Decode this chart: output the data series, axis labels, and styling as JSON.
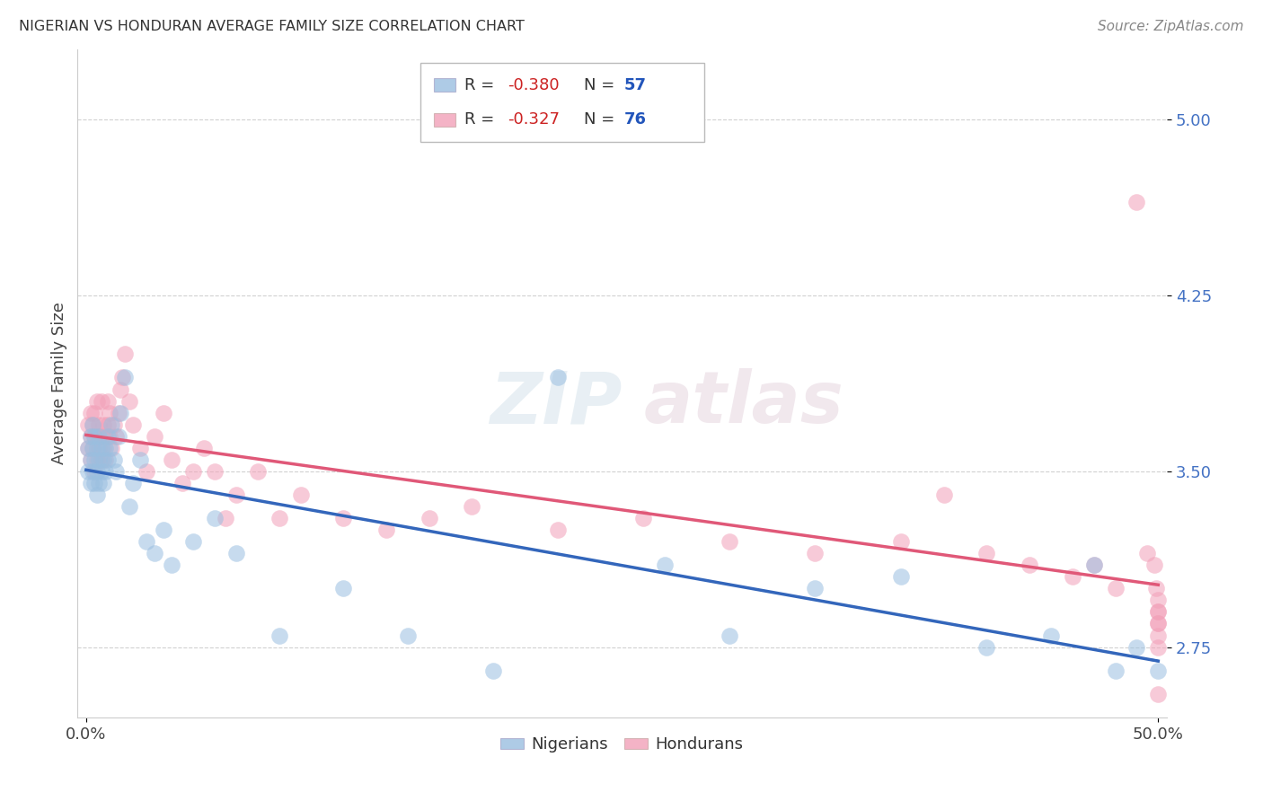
{
  "title": "NIGERIAN VS HONDURAN AVERAGE FAMILY SIZE CORRELATION CHART",
  "source": "Source: ZipAtlas.com",
  "ylabel": "Average Family Size",
  "yticks": [
    2.75,
    3.5,
    4.25,
    5.0
  ],
  "ylim": [
    2.45,
    5.3
  ],
  "xlim": [
    -0.004,
    0.504
  ],
  "y_axis_color": "#4472c4",
  "nigerians_R": "-0.380",
  "nigerians_N": "57",
  "hondurans_R": "-0.327",
  "hondurans_N": "76",
  "blue_color": "#9abfe0",
  "pink_color": "#f2a0b8",
  "blue_line_color": "#3366bb",
  "pink_line_color": "#e05878",
  "nigerians_x": [
    0.001,
    0.001,
    0.002,
    0.002,
    0.002,
    0.003,
    0.003,
    0.003,
    0.004,
    0.004,
    0.004,
    0.005,
    0.005,
    0.005,
    0.006,
    0.006,
    0.006,
    0.007,
    0.007,
    0.008,
    0.008,
    0.009,
    0.009,
    0.01,
    0.01,
    0.011,
    0.012,
    0.013,
    0.014,
    0.015,
    0.016,
    0.018,
    0.02,
    0.022,
    0.025,
    0.028,
    0.032,
    0.036,
    0.04,
    0.05,
    0.06,
    0.07,
    0.09,
    0.12,
    0.15,
    0.19,
    0.22,
    0.27,
    0.3,
    0.34,
    0.38,
    0.42,
    0.45,
    0.47,
    0.48,
    0.49,
    0.5
  ],
  "nigerians_y": [
    3.5,
    3.6,
    3.45,
    3.55,
    3.65,
    3.5,
    3.6,
    3.7,
    3.45,
    3.55,
    3.65,
    3.4,
    3.5,
    3.6,
    3.45,
    3.55,
    3.65,
    3.5,
    3.6,
    3.45,
    3.55,
    3.5,
    3.6,
    3.55,
    3.65,
    3.6,
    3.7,
    3.55,
    3.5,
    3.65,
    3.75,
    3.9,
    3.35,
    3.45,
    3.55,
    3.2,
    3.15,
    3.25,
    3.1,
    3.2,
    3.3,
    3.15,
    2.8,
    3.0,
    2.8,
    2.65,
    3.9,
    3.1,
    2.8,
    3.0,
    3.05,
    2.75,
    2.8,
    3.1,
    2.65,
    2.75,
    2.65
  ],
  "hondurans_x": [
    0.001,
    0.001,
    0.002,
    0.002,
    0.002,
    0.003,
    0.003,
    0.004,
    0.004,
    0.004,
    0.005,
    0.005,
    0.005,
    0.006,
    0.006,
    0.007,
    0.007,
    0.007,
    0.008,
    0.008,
    0.009,
    0.009,
    0.01,
    0.01,
    0.011,
    0.011,
    0.012,
    0.013,
    0.014,
    0.015,
    0.016,
    0.017,
    0.018,
    0.02,
    0.022,
    0.025,
    0.028,
    0.032,
    0.036,
    0.04,
    0.045,
    0.05,
    0.055,
    0.06,
    0.065,
    0.07,
    0.08,
    0.09,
    0.1,
    0.12,
    0.14,
    0.16,
    0.18,
    0.22,
    0.26,
    0.3,
    0.34,
    0.38,
    0.4,
    0.42,
    0.44,
    0.46,
    0.47,
    0.48,
    0.49,
    0.495,
    0.498,
    0.499,
    0.5,
    0.5,
    0.5,
    0.5,
    0.5,
    0.5,
    0.5,
    0.5
  ],
  "hondurans_y": [
    3.6,
    3.7,
    3.55,
    3.65,
    3.75,
    3.6,
    3.7,
    3.5,
    3.65,
    3.75,
    3.55,
    3.65,
    3.8,
    3.6,
    3.7,
    3.55,
    3.65,
    3.8,
    3.6,
    3.7,
    3.55,
    3.65,
    3.7,
    3.8,
    3.65,
    3.75,
    3.6,
    3.7,
    3.65,
    3.75,
    3.85,
    3.9,
    4.0,
    3.8,
    3.7,
    3.6,
    3.5,
    3.65,
    3.75,
    3.55,
    3.45,
    3.5,
    3.6,
    3.5,
    3.3,
    3.4,
    3.5,
    3.3,
    3.4,
    3.3,
    3.25,
    3.3,
    3.35,
    3.25,
    3.3,
    3.2,
    3.15,
    3.2,
    3.4,
    3.15,
    3.1,
    3.05,
    3.1,
    3.0,
    4.65,
    3.15,
    3.1,
    3.0,
    2.9,
    2.85,
    2.95,
    2.9,
    2.85,
    2.8,
    2.75,
    2.55
  ]
}
